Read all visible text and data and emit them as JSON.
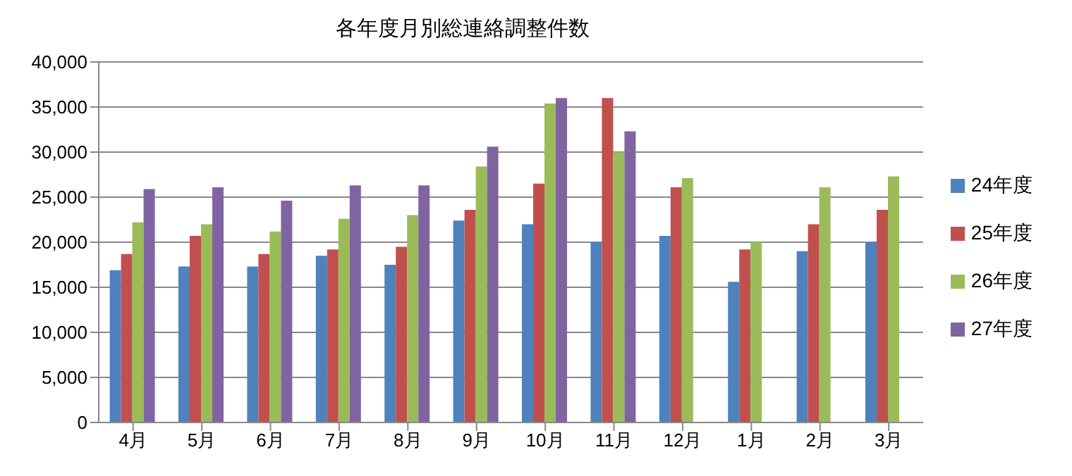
{
  "chart_data": {
    "type": "bar",
    "title": "各年度月別総連絡調整件数",
    "categories": [
      "4月",
      "5月",
      "6月",
      "7月",
      "8月",
      "9月",
      "10月",
      "11月",
      "12月",
      "1月",
      "2月",
      "3月"
    ],
    "series": [
      {
        "name": "24年度",
        "color": "#4f81bd",
        "values": [
          16900,
          17300,
          17300,
          18500,
          17500,
          22400,
          22000,
          20000,
          20700,
          15600,
          19000,
          20000
        ]
      },
      {
        "name": "25年度",
        "color": "#c0504d",
        "values": [
          18700,
          20700,
          18700,
          19200,
          19500,
          23600,
          26500,
          36000,
          26100,
          19200,
          22000,
          23600
        ]
      },
      {
        "name": "26年度",
        "color": "#9bbb59",
        "values": [
          22200,
          22000,
          21200,
          22600,
          23000,
          28400,
          35400,
          30000,
          27100,
          20000,
          26100,
          27300
        ]
      },
      {
        "name": "27年度",
        "color": "#8064a2",
        "values": [
          25900,
          26100,
          24600,
          26300,
          26300,
          30600,
          36000,
          32300,
          null,
          null,
          null,
          null
        ]
      }
    ],
    "ylim": [
      0,
      40000
    ],
    "yticks": [
      0,
      {
        "value": 5000,
        "label": "5,000"
      },
      {
        "value": 10000,
        "label": "10,000"
      },
      {
        "value": 15000,
        "label": "15,000"
      },
      {
        "value": 20000,
        "label": "20,000"
      },
      {
        "value": 25000,
        "label": "25,000"
      },
      {
        "value": 30000,
        "label": "30,000"
      },
      {
        "value": 35000,
        "label": "35,000"
      },
      {
        "value": 40000,
        "label": "40,000"
      }
    ],
    "grid": "y",
    "legend": "right"
  }
}
